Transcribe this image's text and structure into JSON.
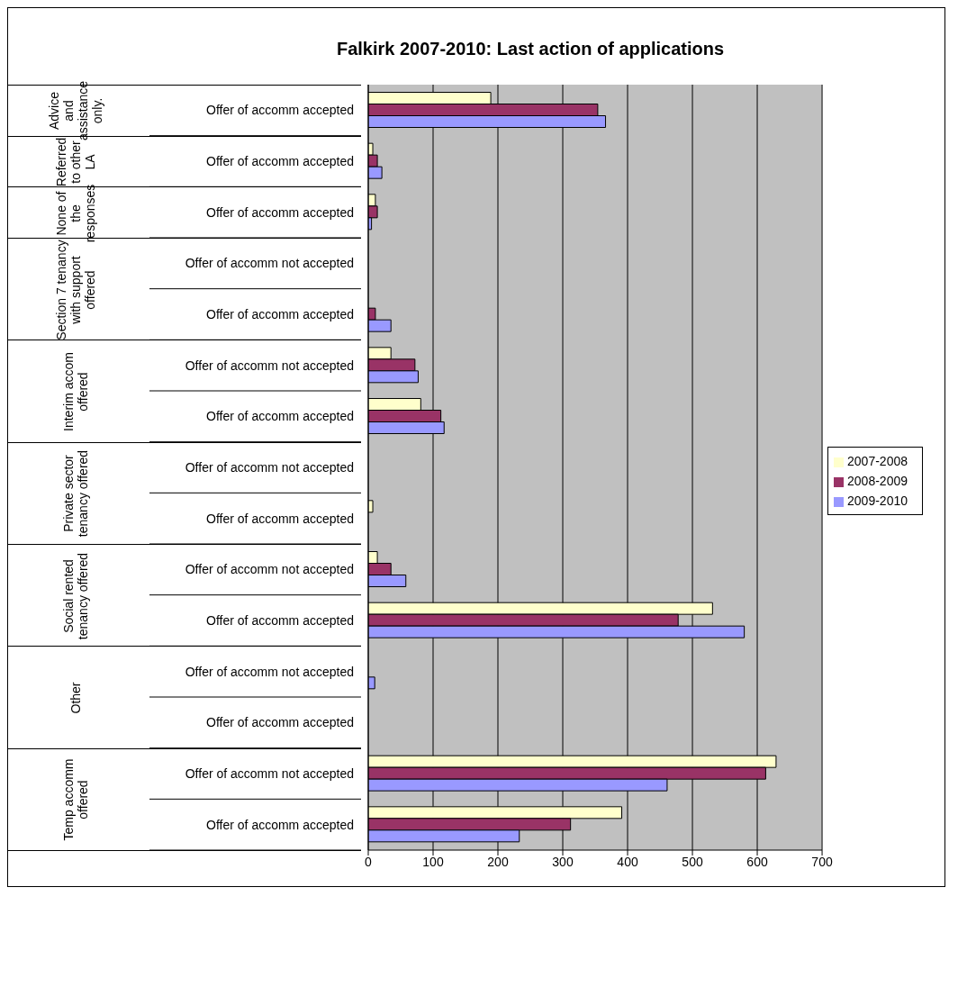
{
  "chart_data": {
    "type": "bar",
    "orientation": "horizontal",
    "title": "Falkirk 2007-2010: Last action of applications",
    "categories": [
      "Offer of accomm accepted",
      "Offer of accomm accepted",
      "Offer of accomm accepted",
      "Offer of accomm not accepted",
      "Offer of accomm accepted",
      "Offer of accomm not accepted",
      "Offer of accomm accepted",
      "Offer of accomm not accepted",
      "Offer of accomm accepted",
      "Offer of accomm not accepted",
      "Offer of accomm accepted",
      "Offer of accomm not accepted",
      "Offer of accomm accepted",
      "Offer of accomm not accepted",
      "Offer of accomm accepted"
    ],
    "annotations": [
      "Advice and assistance only.",
      "Referred to other LA",
      "None of the responses",
      "Section 7 tenancy with support offered",
      "Interim accom offered",
      "Private sector tenancy offered",
      "Social rented tenancy offered",
      "Other",
      "Temp accomm offered"
    ],
    "series": [
      {
        "name": "2007-2008",
        "color": "#ffffcc",
        "values": [
          189,
          7,
          11,
          0,
          0,
          35,
          81,
          0,
          7,
          14,
          531,
          0,
          0,
          629,
          391
        ]
      },
      {
        "name": "2008-2009",
        "color": "#993366",
        "values": [
          354,
          14,
          14,
          0,
          11,
          72,
          112,
          0,
          0,
          35,
          478,
          0,
          0,
          613,
          312
        ]
      },
      {
        "name": "2009-2010",
        "color": "#9999ff",
        "values": [
          366,
          21,
          5,
          0,
          35,
          77,
          117,
          0,
          0,
          58,
          580,
          10,
          0,
          461,
          233
        ]
      }
    ],
    "xlim": [
      0,
      700
    ],
    "xticks": [
      0,
      100,
      200,
      300,
      400,
      500,
      600,
      700
    ],
    "grid": "x",
    "legend": "right"
  }
}
